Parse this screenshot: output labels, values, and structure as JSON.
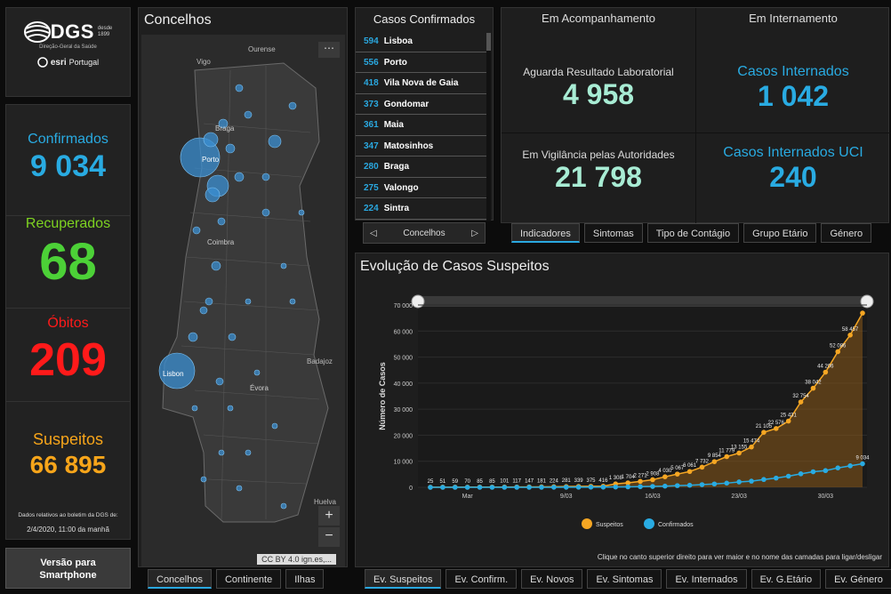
{
  "logo": {
    "name": "DGS",
    "desde": "desde",
    "year": "1899",
    "sub": "Direção-Geral da Saúde",
    "partner": "esri",
    "partner_country": "Portugal"
  },
  "stats": {
    "confirmados": {
      "label": "Confirmados",
      "value": "9 034",
      "color": "#29abe2"
    },
    "recuperados": {
      "label": "Recuperados",
      "value": "68",
      "color": "#4cd137"
    },
    "obitos": {
      "label": "Óbitos",
      "value": "209",
      "color": "#ff1a1a"
    },
    "suspeitos": {
      "label": "Suspeitos",
      "value": "66 895",
      "color": "#f7a51a"
    },
    "note_line1": "Dados relativos ao boletim da DGS de:",
    "note_line2": "2/4/2020, 11:00 da manhã"
  },
  "smartphone_label": {
    "line1": "Versão para",
    "line2": "Smartphone"
  },
  "map": {
    "title": "Concelhos",
    "places": [
      "Ourense",
      "Vigo",
      "Braga",
      "Porto",
      "Coimbra",
      "Lisbon",
      "Évora",
      "Badajoz",
      "Huelva"
    ],
    "attribution": "CC BY 4.0 ign.es,...",
    "tabs": [
      "Concelhos",
      "Continente",
      "Ilhas"
    ],
    "active_tab": 0
  },
  "cases": {
    "title": "Casos Confirmados",
    "rows": [
      {
        "n": "594",
        "city": "Lisboa"
      },
      {
        "n": "556",
        "city": "Porto"
      },
      {
        "n": "418",
        "city": "Vila Nova de Gaia"
      },
      {
        "n": "373",
        "city": "Gondomar"
      },
      {
        "n": "361",
        "city": "Maia"
      },
      {
        "n": "347",
        "city": "Matosinhos"
      },
      {
        "n": "280",
        "city": "Braga"
      },
      {
        "n": "275",
        "city": "Valongo"
      },
      {
        "n": "224",
        "city": "Sintra"
      }
    ],
    "pager_label": "Concelhos"
  },
  "indicators": {
    "acompanhamento": {
      "title": "Em Acompanhamento",
      "items": [
        {
          "label": "Aguarda Resultado Laboratorial",
          "value": "4 958",
          "color": "#a8ecd4"
        },
        {
          "label": "Em Vigilância pelas Autoridades",
          "value": "21 798",
          "color": "#a8ecd4"
        }
      ]
    },
    "internamento": {
      "title": "Em Internamento",
      "items": [
        {
          "label": "Casos Internados",
          "value": "1 042",
          "color": "#29abe2"
        },
        {
          "label": "Casos Internados UCI",
          "value": "240",
          "color": "#29abe2"
        }
      ]
    },
    "tabs": [
      "Indicadores",
      "Sintomas",
      "Tipo de Contágio",
      "Grupo Etário",
      "Género"
    ],
    "active_tab": 0
  },
  "evolution": {
    "title": "Evolução de Casos Suspeitos",
    "hint": "Clique no canto superior direito para ver maior e no nome das camadas para ligar/desligar",
    "tabs": [
      "Ev. Suspeitos",
      "Ev. Confirm.",
      "Ev. Novos",
      "Ev. Sintomas",
      "Ev. Internados",
      "Ev. G.Etário",
      "Ev. Género"
    ],
    "active_tab": 0
  },
  "chart_data": {
    "type": "line",
    "ylabel": "Número de Casos",
    "ylim": [
      0,
      70000
    ],
    "yticks": [
      "0",
      "10 000",
      "20 000",
      "30 000",
      "40 000",
      "50 000",
      "60 000",
      "70 000"
    ],
    "x_tick_labels": [
      {
        "i": 3,
        "label": "Mar"
      },
      {
        "i": 11,
        "label": "9/03"
      },
      {
        "i": 18,
        "label": "16/03"
      },
      {
        "i": 25,
        "label": "23/03"
      },
      {
        "i": 32,
        "label": "30/03"
      }
    ],
    "series": [
      {
        "name": "Suspeitos",
        "color": "#f5a623",
        "values": [
          25,
          51,
          59,
          70,
          85,
          85,
          101,
          117,
          147,
          181,
          224,
          281,
          339,
          375,
          416,
          1308,
          1704,
          2271,
          2908,
          4030,
          5067,
          6061,
          7732,
          9854,
          11779,
          13155,
          15474,
          21105,
          22576,
          25431,
          32754,
          38042,
          44206,
          52086,
          58457,
          66895
        ],
        "labels": [
          "25",
          "51",
          "59",
          "70",
          "85",
          "85",
          "101",
          "117",
          "147",
          "181",
          "224",
          "281",
          "339",
          "375",
          "416",
          "1 308",
          "1 704",
          "2 271",
          "2 908",
          "4 030",
          "5 067",
          "6 061",
          "7 732",
          "9 854",
          "11 779",
          "13 155",
          "15 474",
          "21 105",
          "22 576",
          "25 431",
          "32 754",
          "38 042",
          "44 206",
          "52 086",
          "58 457",
          ""
        ]
      },
      {
        "name": "Confirmados",
        "color": "#29abe2",
        "values": [
          0,
          0,
          0,
          0,
          0,
          2,
          4,
          6,
          9,
          13,
          21,
          30,
          41,
          59,
          78,
          112,
          169,
          245,
          331,
          448,
          642,
          785,
          1020,
          1280,
          1600,
          2060,
          2362,
          2995,
          3544,
          4268,
          5170,
          5962,
          6408,
          7443,
          8251,
          9034
        ],
        "labels": [
          "",
          "",
          "",
          "",
          "",
          "",
          "",
          "",
          "",
          "",
          "",
          "",
          "",
          "",
          "",
          "",
          "",
          "",
          "",
          "",
          "",
          "",
          "",
          "",
          "",
          "",
          "",
          "",
          "",
          "",
          "",
          "",
          "",
          "",
          "",
          "9 034"
        ]
      }
    ],
    "legend_placement": "bottom"
  }
}
